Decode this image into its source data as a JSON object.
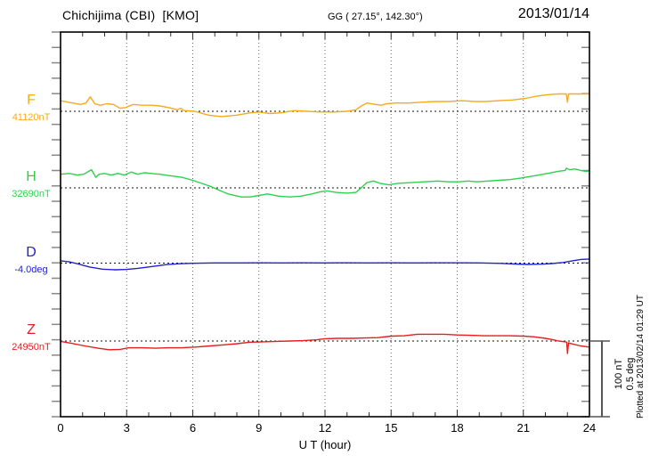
{
  "header": {
    "title": "Chichijima (CBI)  [KMO]",
    "coordinates": "GG ( 27.15°, 142.30°)",
    "date": "2013/01/14"
  },
  "xaxis": {
    "label": "U T (hour)",
    "ticks": [
      0,
      3,
      6,
      9,
      12,
      15,
      18,
      21,
      24
    ]
  },
  "scalebar": {
    "label_nt": "100 nT",
    "label_deg": "0.5 deg"
  },
  "plotted_note": "Plotted at 2013/02/14 01:29 UT",
  "colors": {
    "F": "#f5ab1e",
    "H": "#2fd04f",
    "D": "#2323cc",
    "Z": "#e51e1e",
    "grid": "#666666",
    "frame": "#000000",
    "side_ticks": "#888888",
    "scalebar": "#555555"
  },
  "chart_data": {
    "type": "line",
    "title": "Chichijima (CBI) [KMO] magnetogram 2013/01/14",
    "xlabel": "U T (hour)",
    "x_range": [
      0,
      24
    ],
    "x_major_ticks": [
      0,
      3,
      6,
      9,
      12,
      15,
      18,
      21,
      24
    ],
    "x_minor_tick_step_hours": 1,
    "grid": "dotted vertical at 3-hour intervals, dotted horizontal baseline per series",
    "scale": {
      "nT_per_bar": 100,
      "deg_per_bar": 0.5
    },
    "series": [
      {
        "key": "F",
        "name": "F",
        "unit": "nT",
        "baseline_label": "41120nT",
        "baseline_value": 41120,
        "points": [
          [
            0,
            14
          ],
          [
            0.35,
            12
          ],
          [
            0.9,
            9
          ],
          [
            1.15,
            11
          ],
          [
            1.35,
            19
          ],
          [
            1.55,
            10
          ],
          [
            1.8,
            8
          ],
          [
            2.1,
            10
          ],
          [
            2.4,
            9
          ],
          [
            2.7,
            4
          ],
          [
            2.95,
            5
          ],
          [
            3.3,
            9
          ],
          [
            3.7,
            8
          ],
          [
            4.1,
            8
          ],
          [
            4.5,
            7
          ],
          [
            4.9,
            5
          ],
          [
            5.3,
            2
          ],
          [
            5.45,
            4
          ],
          [
            5.6,
            1
          ],
          [
            6.1,
            0
          ],
          [
            6.7,
            -5
          ],
          [
            7.3,
            -7
          ],
          [
            8.0,
            -5
          ],
          [
            8.6,
            -2
          ],
          [
            9.0,
            -1
          ],
          [
            9.5,
            -3
          ],
          [
            10.0,
            -2
          ],
          [
            10.6,
            1
          ],
          [
            11.2,
            0
          ],
          [
            11.8,
            -1
          ],
          [
            12.4,
            -1
          ],
          [
            13.0,
            0
          ],
          [
            13.4,
            2
          ],
          [
            13.65,
            7
          ],
          [
            13.9,
            11
          ],
          [
            14.1,
            10
          ],
          [
            14.3,
            9
          ],
          [
            14.55,
            8
          ],
          [
            14.8,
            10
          ],
          [
            15.2,
            11
          ],
          [
            15.8,
            11
          ],
          [
            16.4,
            12
          ],
          [
            17.0,
            13
          ],
          [
            17.6,
            13
          ],
          [
            18.2,
            14
          ],
          [
            18.8,
            13
          ],
          [
            19.3,
            13
          ],
          [
            19.9,
            14
          ],
          [
            20.5,
            15
          ],
          [
            21.1,
            17
          ],
          [
            21.6,
            20
          ],
          [
            22.1,
            22
          ],
          [
            22.6,
            23
          ],
          [
            22.95,
            23
          ],
          [
            23.0,
            12
          ],
          [
            23.05,
            23
          ],
          [
            23.5,
            23
          ],
          [
            24,
            23
          ]
        ]
      },
      {
        "key": "H",
        "name": "H",
        "unit": "nT",
        "baseline_label": "32690nT",
        "baseline_value": 32690,
        "points": [
          [
            0,
            18
          ],
          [
            0.4,
            19
          ],
          [
            0.75,
            17
          ],
          [
            1.05,
            18
          ],
          [
            1.4,
            24
          ],
          [
            1.6,
            14
          ],
          [
            1.75,
            18
          ],
          [
            2.0,
            19
          ],
          [
            2.3,
            17
          ],
          [
            2.6,
            19
          ],
          [
            2.9,
            17
          ],
          [
            3.2,
            21
          ],
          [
            3.5,
            18
          ],
          [
            3.8,
            20
          ],
          [
            4.1,
            19
          ],
          [
            4.5,
            18
          ],
          [
            5.0,
            16
          ],
          [
            5.5,
            14
          ],
          [
            6.0,
            10
          ],
          [
            6.4,
            6
          ],
          [
            6.8,
            2
          ],
          [
            7.2,
            -3
          ],
          [
            7.6,
            -8
          ],
          [
            8.2,
            -12
          ],
          [
            8.6,
            -12
          ],
          [
            9.0,
            -10
          ],
          [
            9.4,
            -8
          ],
          [
            9.9,
            -11
          ],
          [
            10.4,
            -12
          ],
          [
            10.9,
            -11
          ],
          [
            11.4,
            -8
          ],
          [
            11.8,
            -5
          ],
          [
            12.1,
            -4
          ],
          [
            12.5,
            -6
          ],
          [
            13.0,
            -7
          ],
          [
            13.4,
            -6
          ],
          [
            13.6,
            -1
          ],
          [
            13.9,
            7
          ],
          [
            14.2,
            9
          ],
          [
            14.5,
            6
          ],
          [
            14.9,
            4
          ],
          [
            15.3,
            6
          ],
          [
            15.9,
            7
          ],
          [
            16.5,
            8
          ],
          [
            17.1,
            9
          ],
          [
            17.6,
            8
          ],
          [
            18.1,
            8
          ],
          [
            18.5,
            9
          ],
          [
            18.9,
            8
          ],
          [
            19.4,
            9
          ],
          [
            19.9,
            10
          ],
          [
            20.4,
            11
          ],
          [
            20.9,
            13
          ],
          [
            21.5,
            16
          ],
          [
            22.1,
            19
          ],
          [
            22.6,
            22
          ],
          [
            22.9,
            23
          ],
          [
            22.95,
            26
          ],
          [
            23.1,
            24
          ],
          [
            23.35,
            25
          ],
          [
            23.6,
            23
          ],
          [
            23.8,
            22
          ],
          [
            24,
            22
          ]
        ]
      },
      {
        "key": "D",
        "name": "D",
        "unit": "deg",
        "baseline_label": "-4.0deg",
        "baseline_value": -4.0,
        "points": [
          [
            0,
            0.015
          ],
          [
            0.4,
            0.008
          ],
          [
            0.8,
            -0.005
          ],
          [
            1.3,
            -0.025
          ],
          [
            1.9,
            -0.04
          ],
          [
            2.5,
            -0.044
          ],
          [
            3.0,
            -0.042
          ],
          [
            3.5,
            -0.035
          ],
          [
            4.2,
            -0.022
          ],
          [
            4.8,
            -0.01
          ],
          [
            5.4,
            -0.004
          ],
          [
            6.0,
            -0.001
          ],
          [
            7,
            0.001
          ],
          [
            8,
            0.001
          ],
          [
            9,
            0.002
          ],
          [
            10,
            0.001
          ],
          [
            11,
            0.002
          ],
          [
            12,
            0.001
          ],
          [
            13,
            0.002
          ],
          [
            14,
            0.001
          ],
          [
            15,
            0.002
          ],
          [
            16,
            0.001
          ],
          [
            17,
            0.002
          ],
          [
            18,
            0.002
          ],
          [
            19,
            0.001
          ],
          [
            20,
            -0.002
          ],
          [
            20.6,
            -0.006
          ],
          [
            21.2,
            -0.009
          ],
          [
            21.8,
            -0.007
          ],
          [
            22.3,
            -0.003
          ],
          [
            22.8,
            0.004
          ],
          [
            23.2,
            0.014
          ],
          [
            23.6,
            0.024
          ],
          [
            24,
            0.027
          ]
        ]
      },
      {
        "key": "Z",
        "name": "Z",
        "unit": "nT",
        "baseline_label": "24950nT",
        "baseline_value": 24950,
        "points": [
          [
            0,
            -0.5
          ],
          [
            0.5,
            -3
          ],
          [
            1.1,
            -6.5
          ],
          [
            1.7,
            -9.5
          ],
          [
            2.2,
            -11.5
          ],
          [
            2.7,
            -11
          ],
          [
            3.1,
            -9
          ],
          [
            3.7,
            -9
          ],
          [
            4.3,
            -9.5
          ],
          [
            4.9,
            -9
          ],
          [
            5.5,
            -9
          ],
          [
            6.1,
            -8
          ],
          [
            6.8,
            -6.5
          ],
          [
            7.4,
            -5
          ],
          [
            8.0,
            -3.5
          ],
          [
            8.6,
            -1.5
          ],
          [
            9.2,
            -1
          ],
          [
            9.8,
            -0.5
          ],
          [
            10.4,
            0
          ],
          [
            11.0,
            0.5
          ],
          [
            11.6,
            1.5
          ],
          [
            12.0,
            3
          ],
          [
            12.6,
            3.5
          ],
          [
            13.2,
            3.5
          ],
          [
            13.8,
            4
          ],
          [
            14.4,
            4.5
          ],
          [
            15.0,
            6.5
          ],
          [
            15.6,
            7
          ],
          [
            16.2,
            9
          ],
          [
            16.8,
            9
          ],
          [
            17.4,
            9
          ],
          [
            18.0,
            8
          ],
          [
            18.6,
            7.5
          ],
          [
            19.2,
            7
          ],
          [
            19.8,
            7
          ],
          [
            20.4,
            7
          ],
          [
            21.0,
            6.5
          ],
          [
            21.5,
            5.5
          ],
          [
            22.0,
            3.5
          ],
          [
            22.3,
            2
          ],
          [
            22.6,
            0
          ],
          [
            22.9,
            -1
          ],
          [
            22.97,
            -1.5
          ],
          [
            23.0,
            -16.5
          ],
          [
            23.05,
            -2.5
          ],
          [
            23.3,
            -4.5
          ],
          [
            23.6,
            -6.5
          ],
          [
            24,
            -8
          ]
        ]
      }
    ]
  }
}
